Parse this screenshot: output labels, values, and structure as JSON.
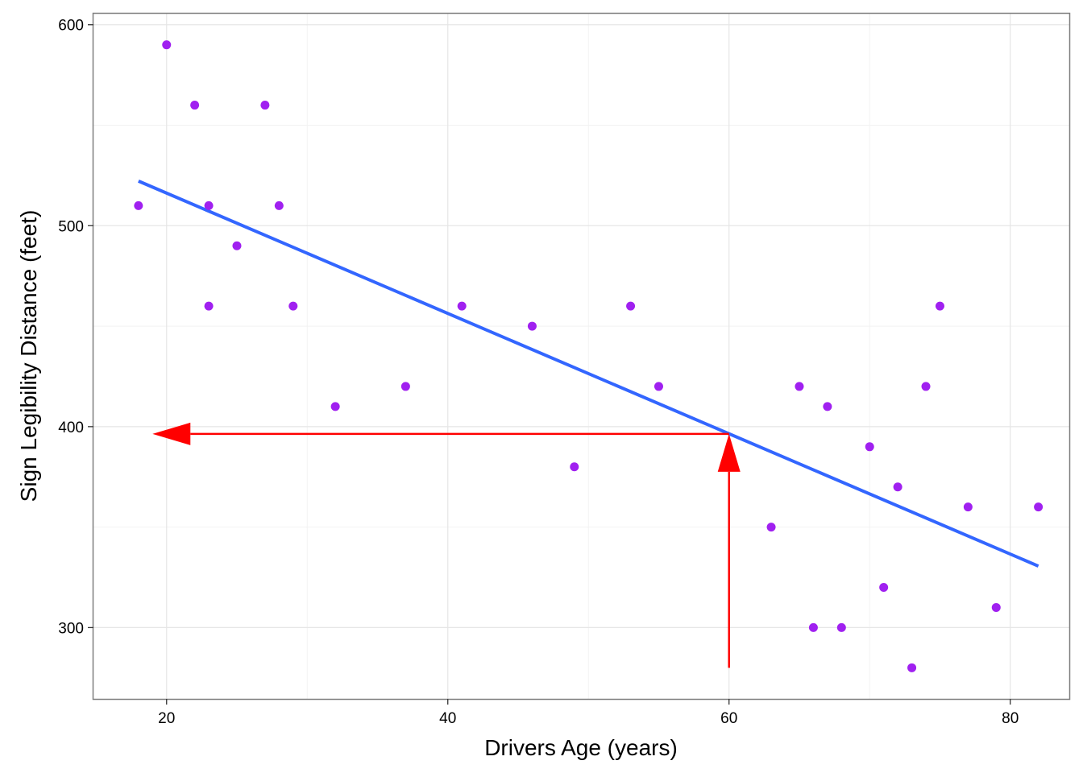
{
  "chart_data": {
    "type": "scatter",
    "xlabel": "Drivers Age (years)",
    "ylabel": "Sign Legibility Distance (feet)",
    "xlim": [
      14.8,
      84.2
    ],
    "ylim": [
      264.5,
      605.5
    ],
    "x_ticks": [
      20,
      40,
      60,
      80
    ],
    "y_ticks": [
      300,
      400,
      500,
      600
    ],
    "x_tick_labels": [
      "20",
      "40",
      "60",
      "80"
    ],
    "y_tick_labels": [
      "300",
      "400",
      "500",
      "600"
    ],
    "grid": true,
    "points": [
      {
        "x": 18,
        "y": 510
      },
      {
        "x": 20,
        "y": 590
      },
      {
        "x": 22,
        "y": 560
      },
      {
        "x": 23,
        "y": 510
      },
      {
        "x": 23,
        "y": 460
      },
      {
        "x": 25,
        "y": 490
      },
      {
        "x": 27,
        "y": 560
      },
      {
        "x": 28,
        "y": 510
      },
      {
        "x": 29,
        "y": 460
      },
      {
        "x": 32,
        "y": 410
      },
      {
        "x": 37,
        "y": 420
      },
      {
        "x": 41,
        "y": 460
      },
      {
        "x": 46,
        "y": 450
      },
      {
        "x": 49,
        "y": 380
      },
      {
        "x": 53,
        "y": 460
      },
      {
        "x": 55,
        "y": 420
      },
      {
        "x": 63,
        "y": 350
      },
      {
        "x": 65,
        "y": 420
      },
      {
        "x": 66,
        "y": 300
      },
      {
        "x": 67,
        "y": 410
      },
      {
        "x": 68,
        "y": 300
      },
      {
        "x": 70,
        "y": 390
      },
      {
        "x": 71,
        "y": 320
      },
      {
        "x": 72,
        "y": 370
      },
      {
        "x": 73,
        "y": 280
      },
      {
        "x": 74,
        "y": 420
      },
      {
        "x": 75,
        "y": 460
      },
      {
        "x": 77,
        "y": 360
      },
      {
        "x": 79,
        "y": 310
      },
      {
        "x": 82,
        "y": 360
      }
    ],
    "fit_line": {
      "x": [
        18,
        82
      ],
      "y": [
        522.2,
        330.6
      ]
    },
    "annotations": [
      {
        "type": "arrow",
        "from": {
          "x": 60,
          "y": 280
        },
        "to": {
          "x": 60,
          "y": 396.4
        }
      },
      {
        "type": "arrow",
        "from": {
          "x": 60,
          "y": 396.4
        },
        "to": {
          "x": 19,
          "y": 396.4
        }
      }
    ],
    "colors": {
      "points": "#a020f0",
      "fit_line": "#3366ff",
      "annotation": "#ff0000"
    }
  }
}
